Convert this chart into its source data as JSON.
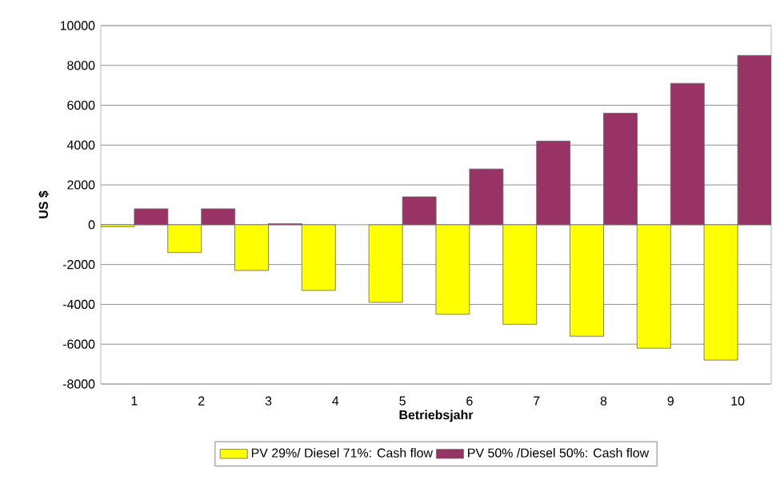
{
  "chart_data": {
    "type": "bar",
    "xlabel": "Betriebsjahr",
    "ylabel": "US $",
    "categories": [
      "1",
      "2",
      "3",
      "4",
      "5",
      "6",
      "7",
      "8",
      "9",
      "10"
    ],
    "series": [
      {
        "name": "PV 29%/ Diesel 71%: Cash flow",
        "color": "#ffff00",
        "values": [
          -100,
          -1400,
          -2300,
          -3300,
          -3900,
          -4500,
          -5000,
          -5600,
          -6200,
          -6800
        ]
      },
      {
        "name": "PV 50% /Diesel 50%: Cash flow",
        "color": "#993366",
        "values": [
          800,
          800,
          50,
          null,
          1400,
          2800,
          4200,
          5600,
          7100,
          8500
        ]
      }
    ],
    "ylim": [
      -8000,
      10000
    ],
    "yticks": [
      -8000,
      -6000,
      -4000,
      -2000,
      0,
      2000,
      4000,
      6000,
      8000,
      10000
    ],
    "grid": "y",
    "legend": "bottom"
  }
}
